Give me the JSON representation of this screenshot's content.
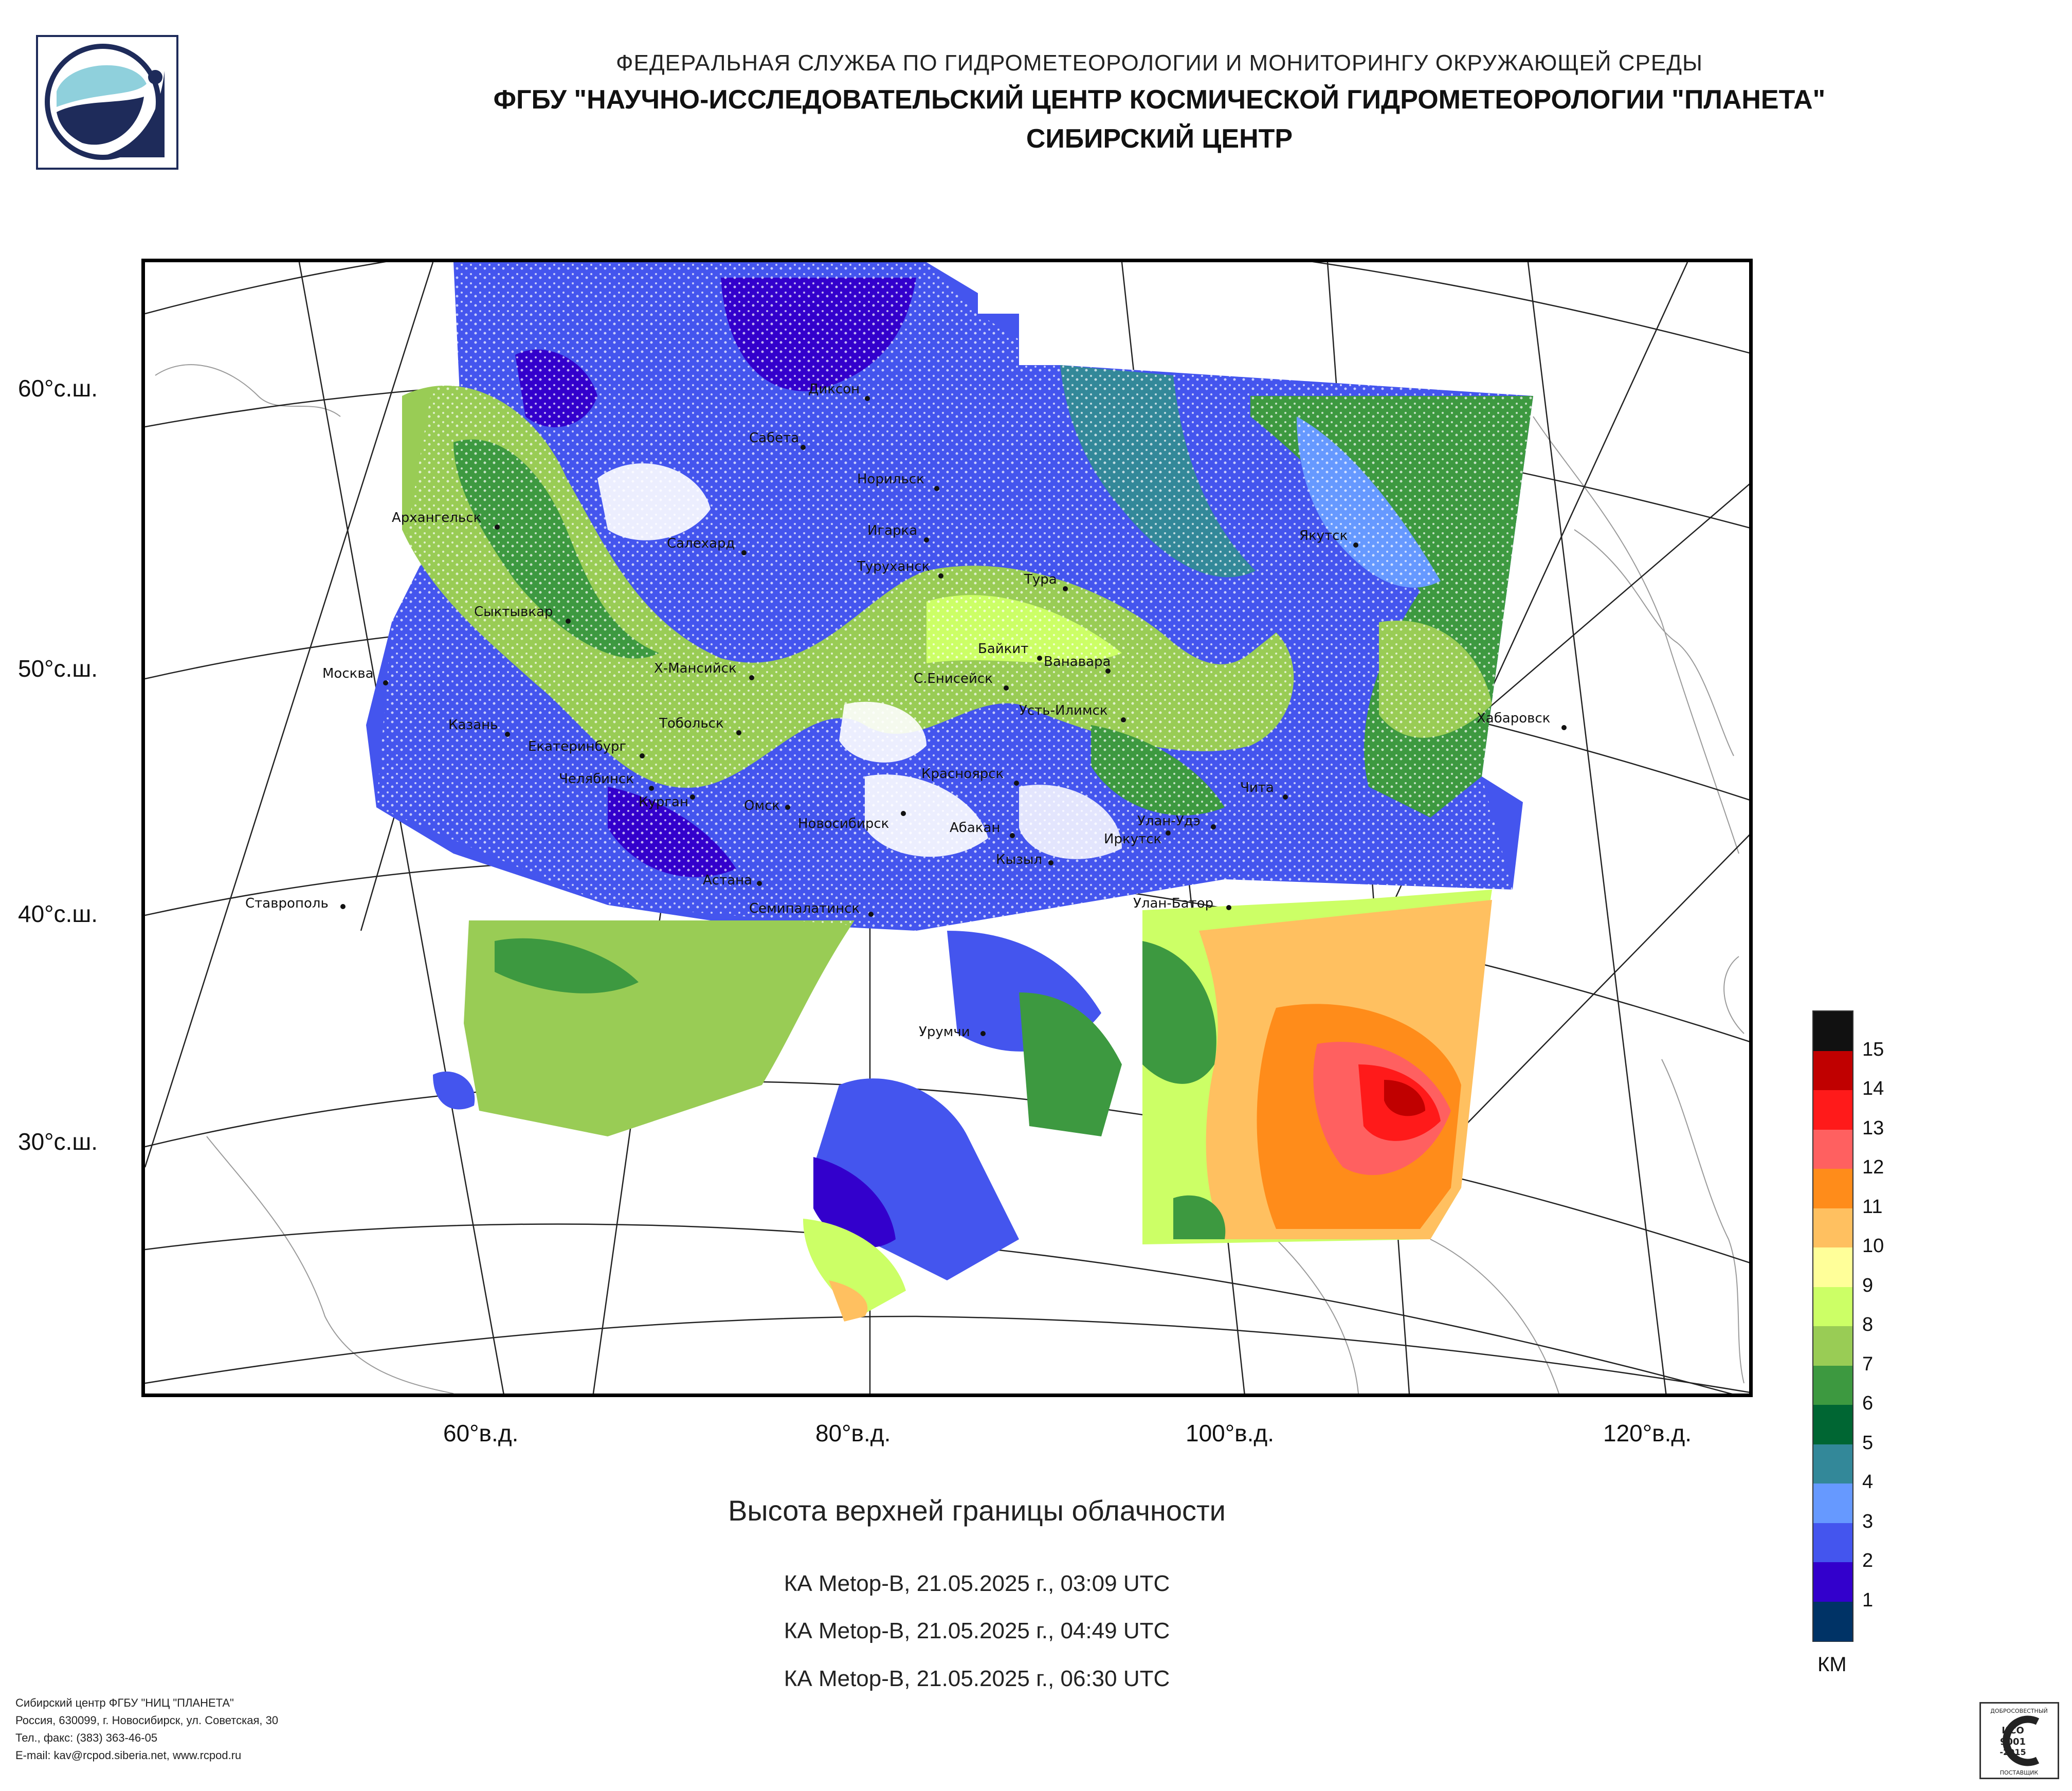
{
  "header": {
    "line1": "ФЕДЕРАЛЬНАЯ СЛУЖБА ПО ГИДРОМЕТЕОРОЛОГИИ И МОНИТОРИНГУ ОКРУЖАЮЩЕЙ СРЕДЫ",
    "line2": "ФГБУ \"НАУЧНО-ИССЛЕДОВАТЕЛЬСКИЙ ЦЕНТР КОСМИЧЕСКОЙ ГИДРОМЕТЕОРОЛОГИИ \"ПЛАНЕТА\"",
    "line3": "СИБИРСКИЙ ЦЕНТР"
  },
  "logo_icon": "planeta-satellite-logo",
  "map": {
    "lat_labels": [
      "60°с.ш.",
      "50°с.ш.",
      "40°с.ш.",
      "30°с.ш."
    ],
    "lon_labels": [
      "60°в.д.",
      "80°в.д.",
      "100°в.д.",
      "120°в.д."
    ],
    "cities": [
      {
        "name": "Диксон"
      },
      {
        "name": "Сабета"
      },
      {
        "name": "Норильск"
      },
      {
        "name": "Архангельск"
      },
      {
        "name": "Салехард"
      },
      {
        "name": "Игарка"
      },
      {
        "name": "Якутск"
      },
      {
        "name": "Туруханск"
      },
      {
        "name": "Тура"
      },
      {
        "name": "Сыктывкар"
      },
      {
        "name": "Байкит"
      },
      {
        "name": "Ванавара"
      },
      {
        "name": "Москва"
      },
      {
        "name": "Х-Мансийск"
      },
      {
        "name": "С.Енисейск"
      },
      {
        "name": "Усть-Илимск"
      },
      {
        "name": "Хабаровск"
      },
      {
        "name": "Казань"
      },
      {
        "name": "Тобольск"
      },
      {
        "name": "Екатеринбург"
      },
      {
        "name": "Красноярск"
      },
      {
        "name": "Челябинск"
      },
      {
        "name": "Курган"
      },
      {
        "name": "Чита"
      },
      {
        "name": "Омск"
      },
      {
        "name": "Новосибирск"
      },
      {
        "name": "Абакан"
      },
      {
        "name": "Улан-Удэ"
      },
      {
        "name": "Иркутск"
      },
      {
        "name": "Кызыл"
      },
      {
        "name": "Астана"
      },
      {
        "name": "Ставрополь"
      },
      {
        "name": "Семипалатинск"
      },
      {
        "name": "Улан-Батор"
      },
      {
        "name": "Урумчи"
      }
    ]
  },
  "legend": {
    "unit": "КМ",
    "levels": [
      {
        "label": "15",
        "color": "#111111"
      },
      {
        "label": "14",
        "color": "#c00000"
      },
      {
        "label": "13",
        "color": "#ff1a1a"
      },
      {
        "label": "12",
        "color": "#ff6060"
      },
      {
        "label": "11",
        "color": "#ff8c1a"
      },
      {
        "label": "10",
        "color": "#ffc060"
      },
      {
        "label": "9",
        "color": "#ffff99"
      },
      {
        "label": "8",
        "color": "#ccff66"
      },
      {
        "label": "7",
        "color": "#99cc55"
      },
      {
        "label": "6",
        "color": "#3d9940"
      },
      {
        "label": "5",
        "color": "#006633"
      },
      {
        "label": "4",
        "color": "#338899"
      },
      {
        "label": "3",
        "color": "#6699ff"
      },
      {
        "label": "2",
        "color": "#4455ee"
      },
      {
        "label": "1",
        "color": "#3300cc"
      },
      {
        "label": "",
        "color": "#003366"
      }
    ]
  },
  "title": "Высота верхней границы облачности",
  "passes": [
    "КА Metop-B, 21.05.2025 г., 03:09 UTC",
    "КА Metop-B, 21.05.2025 г., 04:49 UTC",
    "КА Metop-B, 21.05.2025 г., 06:30 UTC"
  ],
  "footer": [
    "Сибирский центр ФГБУ \"НИЦ \"ПЛАНЕТА\"",
    "Россия, 630099, г. Новосибирск, ул. Советская, 30",
    "Тел., факс: (383) 363-46-05",
    "E-mail: kav@rcpod.siberia.net, www.rcpod.ru"
  ],
  "cert": {
    "line1": "ДОБРОСОВЕСТНЫЙ",
    "line2": "ИСО",
    "line3": "9001",
    "line4": "-2015",
    "line5": "ПОСТАВЩИК"
  }
}
